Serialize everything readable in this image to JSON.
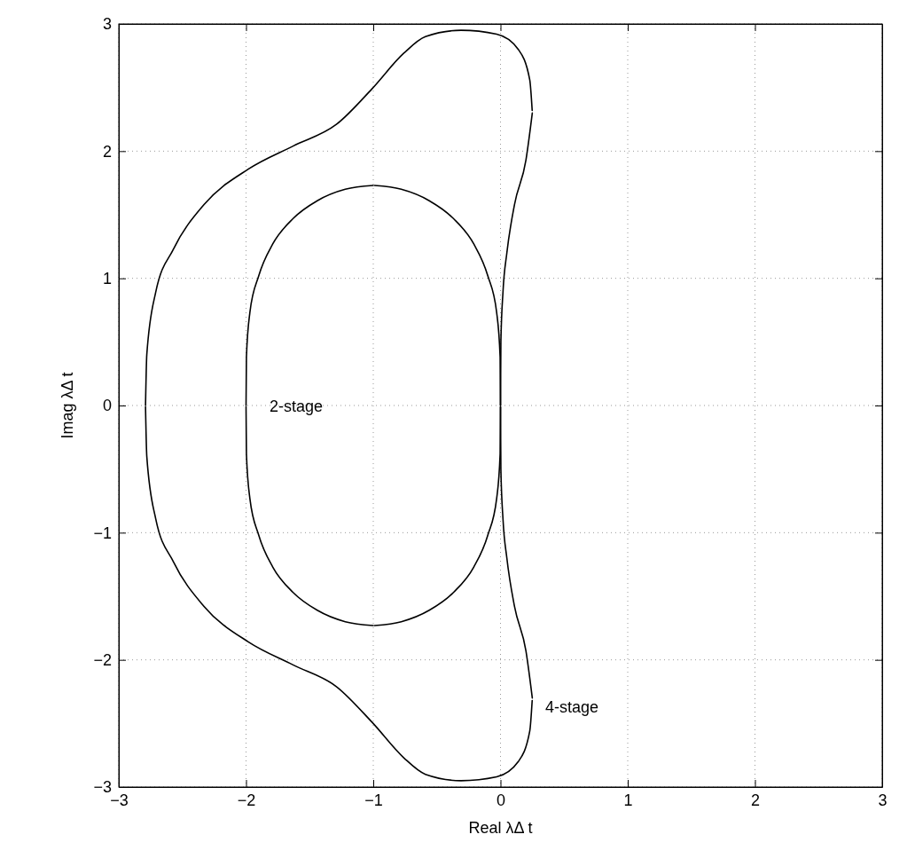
{
  "chart_data": {
    "type": "line",
    "xlabel": "Real λΔ t",
    "ylabel": "Imag λΔ t",
    "xlim": [
      -3,
      3
    ],
    "ylim": [
      -3,
      3
    ],
    "xticks": [
      -3,
      -2,
      -1,
      0,
      1,
      2,
      3
    ],
    "yticks": [
      -3,
      -2,
      -1,
      0,
      1,
      2,
      3
    ],
    "grid": true,
    "series": [
      {
        "color": "#000000",
        "x": [
          -2,
          -1.997,
          -1.97,
          -1.9,
          -1.79,
          -1.63,
          -1.44,
          -1.22,
          -1
        ],
        "values": [
          0,
          0.38,
          0.73,
          1.02,
          1.27,
          1.47,
          1.61,
          1.7,
          1.73
        ]
      },
      {
        "color": "#000000",
        "x": [
          -0.99,
          -0.78,
          -0.56,
          -0.37,
          -0.21,
          -0.1,
          -0.03,
          -0.003,
          0
        ],
        "values": [
          1.73,
          1.7,
          1.61,
          1.47,
          1.27,
          1.02,
          0.73,
          0.38,
          0
        ]
      },
      {
        "color": "#000000",
        "x": [
          -2,
          -1.997,
          -1.97,
          -1.9,
          -1.79,
          -1.63,
          -1.44,
          -1.22,
          -1
        ],
        "values": [
          -0.01,
          -0.38,
          -0.73,
          -1.02,
          -1.27,
          -1.47,
          -1.61,
          -1.7,
          -1.73
        ]
      },
      {
        "color": "#000000",
        "x": [
          -0.99,
          -0.78,
          -0.56,
          -0.37,
          -0.21,
          -0.1,
          -0.03,
          -0.003,
          0
        ],
        "values": [
          -1.73,
          -1.7,
          -1.61,
          -1.47,
          -1.27,
          -1.02,
          -0.73,
          -0.38,
          -0.01
        ]
      },
      {
        "color": "#000000",
        "x": [
          0,
          0.003,
          0.02,
          0.05,
          0.11,
          0.2,
          0.25
        ],
        "values": [
          0,
          0.5,
          0.9,
          1.2,
          1.58,
          1.93,
          2.3
        ]
      },
      {
        "color": "#000000",
        "x": [
          0.249,
          0.23,
          0.14,
          -0.03,
          -0.31,
          -0.59,
          -0.76,
          -1.01,
          -1.29,
          -1.63,
          -1.98,
          -2.33,
          -2.57,
          -2.71,
          -2.78,
          -2.79
        ],
        "values": [
          2.32,
          2.56,
          2.8,
          2.92,
          2.95,
          2.9,
          2.77,
          2.49,
          2.21,
          2.04,
          1.86,
          1.58,
          1.23,
          0.89,
          0.4,
          0
        ]
      },
      {
        "color": "#000000",
        "x": [
          0,
          0.003,
          0.02,
          0.05,
          0.11,
          0.2,
          0.25
        ],
        "values": [
          -0.01,
          -0.5,
          -0.9,
          -1.2,
          -1.58,
          -1.93,
          -2.3
        ]
      },
      {
        "color": "#000000",
        "x": [
          0.249,
          0.23,
          0.14,
          -0.03,
          -0.31,
          -0.59,
          -0.76,
          -1.01,
          -1.29,
          -1.63,
          -1.98,
          -2.33,
          -2.57,
          -2.71,
          -2.78,
          -2.79
        ],
        "values": [
          -2.32,
          -2.56,
          -2.8,
          -2.92,
          -2.95,
          -2.9,
          -2.77,
          -2.49,
          -2.21,
          -2.04,
          -1.86,
          -1.58,
          -1.23,
          -0.89,
          -0.4,
          -0.01
        ]
      }
    ],
    "annotations": [
      "2-stage",
      "4-stage"
    ]
  }
}
